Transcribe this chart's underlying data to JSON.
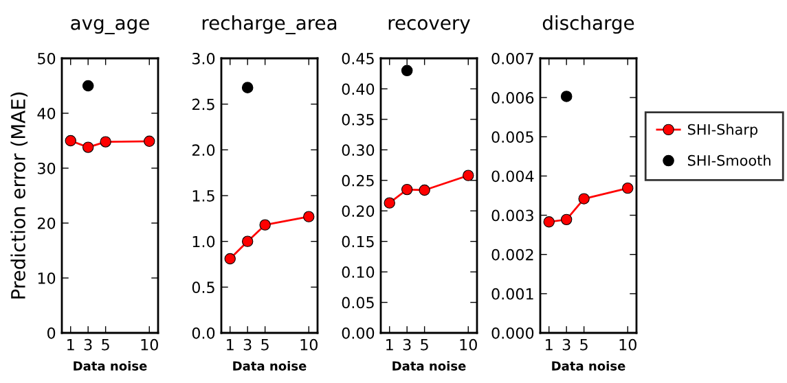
{
  "chart_data": [
    {
      "type": "line",
      "title": "avg_age",
      "xlabel": "Data noise",
      "ylabel": "Prediction error (MAE)",
      "xlim": [
        0,
        11
      ],
      "xticks": [
        1,
        3,
        5,
        10
      ],
      "ylim": [
        0,
        50
      ],
      "yticks": [
        0,
        10,
        20,
        30,
        40,
        50
      ],
      "grid": false,
      "series": [
        {
          "color": "#ff0000",
          "marker": "circle",
          "x": [
            1,
            3,
            5,
            10
          ],
          "values": [
            35.0,
            33.8,
            34.8,
            34.9
          ]
        },
        {
          "type": "scatter",
          "color": "#000000",
          "marker": "circle",
          "x": [
            3
          ],
          "values": [
            45.0
          ]
        }
      ]
    },
    {
      "type": "line",
      "title": "recharge_area",
      "xlabel": "Data noise",
      "xlim": [
        0,
        11
      ],
      "xticks": [
        1,
        3,
        5,
        10
      ],
      "ylim": [
        0,
        3.0
      ],
      "yticks": [
        {
          "value": 0,
          "label": "0.0"
        },
        0.5,
        {
          "value": 1,
          "label": "1.0"
        },
        1.5,
        {
          "value": 2,
          "label": "2.0"
        },
        2.5,
        {
          "value": 3,
          "label": "3.0"
        }
      ],
      "grid": false,
      "series": [
        {
          "color": "#ff0000",
          "marker": "circle",
          "x": [
            1,
            3,
            5,
            10
          ],
          "values": [
            0.81,
            1.0,
            1.18,
            1.27
          ]
        },
        {
          "type": "scatter",
          "color": "#000000",
          "marker": "circle",
          "x": [
            3
          ],
          "values": [
            2.68
          ]
        }
      ]
    },
    {
      "type": "line",
      "title": "recovery",
      "xlabel": "Data noise",
      "xlim": [
        0,
        11
      ],
      "xticks": [
        1,
        3,
        5,
        10
      ],
      "ylim": [
        0,
        0.45
      ],
      "yticks": [
        {
          "value": 0,
          "label": "0.00"
        },
        0.05,
        {
          "value": 0.1,
          "label": "0.10"
        },
        0.15,
        {
          "value": 0.2,
          "label": "0.20"
        },
        0.25,
        {
          "value": 0.3,
          "label": "0.30"
        },
        0.35,
        {
          "value": 0.4,
          "label": "0.40"
        },
        0.45
      ],
      "grid": false,
      "series": [
        {
          "color": "#ff0000",
          "marker": "circle",
          "x": [
            1,
            3,
            5,
            10
          ],
          "values": [
            0.213,
            0.235,
            0.234,
            0.258
          ]
        },
        {
          "type": "scatter",
          "color": "#000000",
          "marker": "circle",
          "x": [
            3
          ],
          "values": [
            0.43
          ]
        }
      ]
    },
    {
      "type": "line",
      "title": "discharge",
      "xlabel": "Data noise",
      "xlim": [
        0,
        11
      ],
      "xticks": [
        1,
        3,
        5,
        10
      ],
      "ylim": [
        0,
        0.007
      ],
      "yticks": [
        {
          "value": 0,
          "label": "0.000"
        },
        0.001,
        0.002,
        0.003,
        0.004,
        0.005,
        0.006,
        0.007
      ],
      "grid": false,
      "legend": "right",
      "series": [
        {
          "name": "SHI-Sharp",
          "color": "#ff0000",
          "marker": "circle",
          "x": [
            1,
            3,
            5,
            10
          ],
          "values": [
            0.00283,
            0.00289,
            0.00342,
            0.00369
          ]
        },
        {
          "name": "SHI-Smooth",
          "type": "scatter",
          "color": "#000000",
          "marker": "circle",
          "x": [
            3
          ],
          "values": [
            0.00603
          ]
        }
      ]
    }
  ]
}
